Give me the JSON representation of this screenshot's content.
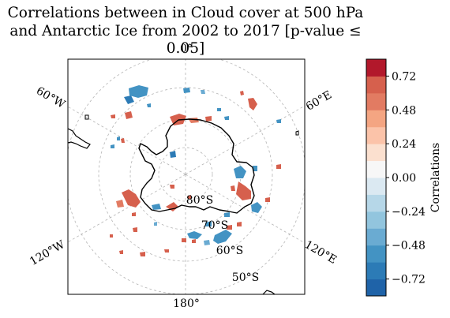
{
  "title": {
    "line1": "Correlations between in Cloud cover at 500 hPa",
    "line2": "and Antarctic Ice from 2002 to 2017 [p-value ≤ 0.05]"
  },
  "map": {
    "projection": "South Polar Stereographic",
    "longitude_labels": [
      "0°",
      "60°E",
      "120°E",
      "180°",
      "120°W",
      "60°W"
    ],
    "latitude_labels": [
      "80°S",
      "70°S",
      "60°S",
      "50°S"
    ],
    "gridlines": true
  },
  "colorbar": {
    "label": "Correlations",
    "range": [
      -0.84,
      0.84
    ],
    "ticks": [
      "0.72",
      "0.48",
      "0.24",
      "0.00",
      "−0.24",
      "−0.48",
      "−0.72"
    ],
    "tick_values": [
      0.72,
      0.48,
      0.24,
      0.0,
      -0.24,
      -0.48,
      -0.72
    ],
    "n_levels": 14,
    "colors_low_to_high": [
      "#1f63a8",
      "#2c7bb6",
      "#4393c3",
      "#6aabd2",
      "#92c5de",
      "#b6d7e8",
      "#dbe9f2",
      "#f7f7f7",
      "#fbe0cf",
      "#fbc3a9",
      "#f4a582",
      "#e27b62",
      "#d6604d",
      "#b2182b"
    ]
  },
  "chart_data": {
    "type": "heatmap",
    "title": "Correlations between in Cloud cover at 500 hPa and Antarctic Ice from 2002 to 2017 [p-value ≤ 0.05]",
    "colorbar_label": "Correlations",
    "value_range": [
      -0.84,
      0.84
    ],
    "colorbar_ticks": [
      -0.72,
      -0.48,
      -0.24,
      0.0,
      0.24,
      0.48,
      0.72
    ]
  }
}
